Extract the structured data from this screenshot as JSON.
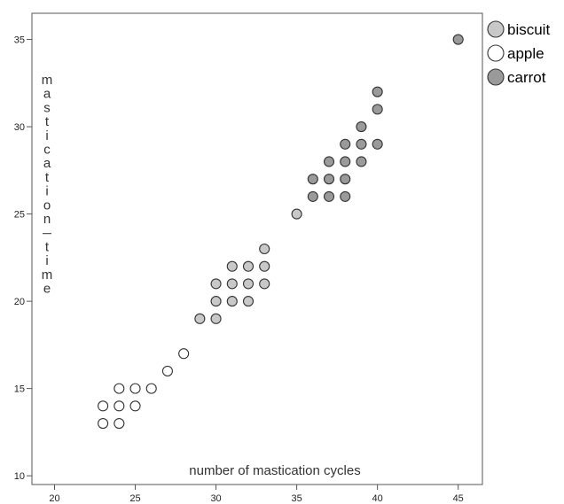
{
  "chart_data": {
    "type": "scatter",
    "title": "",
    "xlabel": "number of mastication cycles",
    "ylabel": "mastication_time",
    "xlim": [
      18.6,
      46.5
    ],
    "ylim": [
      9.5,
      36.5
    ],
    "xticks": [
      20,
      25,
      30,
      35,
      40,
      45
    ],
    "yticks": [
      10,
      15,
      20,
      25,
      30,
      35
    ],
    "grid": false,
    "legend_position": "top-right outside",
    "series": [
      {
        "name": "biscuit",
        "color": "#c8c8c8",
        "points": [
          [
            29,
            19
          ],
          [
            30,
            19
          ],
          [
            30,
            20
          ],
          [
            30,
            21
          ],
          [
            31,
            20
          ],
          [
            31,
            21
          ],
          [
            31,
            22
          ],
          [
            32,
            20
          ],
          [
            32,
            21
          ],
          [
            32,
            22
          ],
          [
            33,
            21
          ],
          [
            33,
            22
          ],
          [
            33,
            23
          ],
          [
            35,
            25
          ]
        ]
      },
      {
        "name": "apple",
        "color": "#ffffff",
        "points": [
          [
            23,
            13
          ],
          [
            23,
            14
          ],
          [
            24,
            13
          ],
          [
            24,
            14
          ],
          [
            24,
            15
          ],
          [
            25,
            14
          ],
          [
            25,
            15
          ],
          [
            26,
            15
          ],
          [
            27,
            16
          ],
          [
            28,
            17
          ]
        ]
      },
      {
        "name": "carrot",
        "color": "#9a9a9a",
        "points": [
          [
            36,
            26
          ],
          [
            36,
            27
          ],
          [
            37,
            26
          ],
          [
            37,
            27
          ],
          [
            37,
            28
          ],
          [
            38,
            26
          ],
          [
            38,
            27
          ],
          [
            38,
            28
          ],
          [
            38,
            29
          ],
          [
            39,
            28
          ],
          [
            39,
            29
          ],
          [
            39,
            30
          ],
          [
            40,
            29
          ],
          [
            40,
            31
          ],
          [
            40,
            32
          ],
          [
            45,
            35
          ]
        ]
      }
    ]
  }
}
